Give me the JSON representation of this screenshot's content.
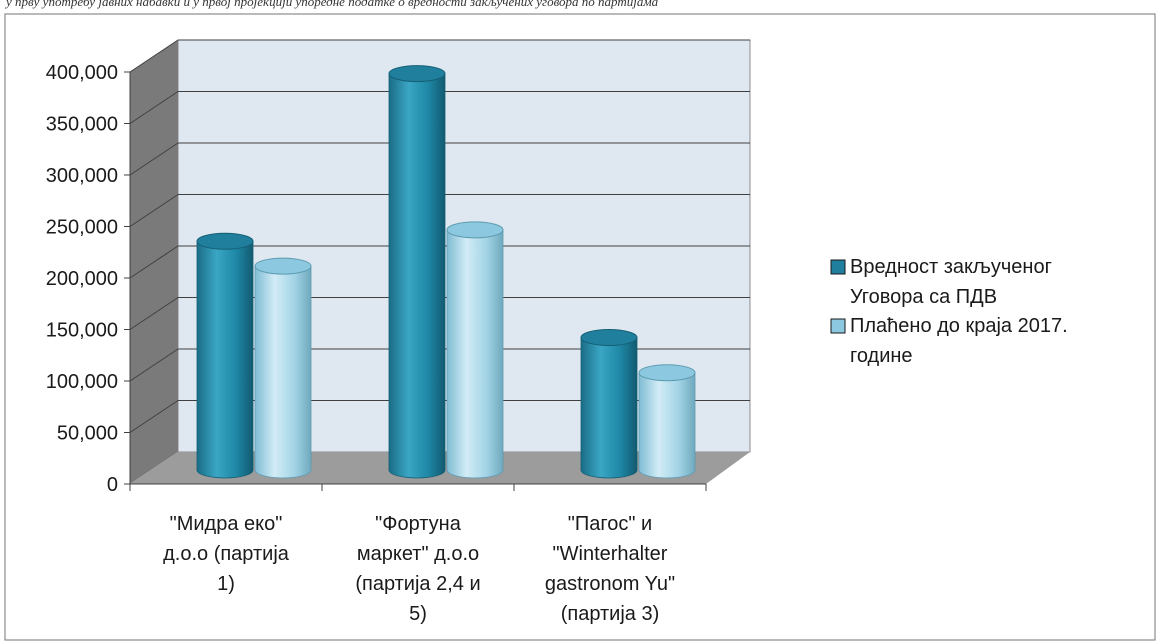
{
  "top_caption": "у прву употребу јавних набавки и у првој пројекцији упоредне податке о вредности закључених уговора по партијама",
  "colors": {
    "series_dark": "#1f7f9c",
    "series_light": "#8cc9e0",
    "wall": "#dfe8f0",
    "side_wall": "#7f7f7f",
    "floor": "#9a9a9a",
    "grid": "#404040"
  },
  "chart_data": {
    "type": "bar",
    "style": "3d-cylinder",
    "categories": [
      [
        "\"Мидра еко\"",
        "д.о.о  (партија",
        "1)"
      ],
      [
        "\"Фортуна",
        "маркет\" д.о.о",
        "(партија 2,4 и",
        "5)"
      ],
      [
        "\"Пагос\" и",
        "\"Winterhalter",
        "gastronom Yu\"",
        "(партија 3)"
      ]
    ],
    "series": [
      {
        "name": "Вредност закљученог Уговора са ПДВ",
        "legend_lines": [
          "Вредност закљученог",
          "Уговора са ПДВ"
        ],
        "values": [
          221000,
          383000,
          128000
        ]
      },
      {
        "name": "Плаћено до краја 2017. године",
        "legend_lines": [
          "Плаћено до краја 2017.",
          "године"
        ],
        "values": [
          197000,
          232000,
          94000
        ]
      }
    ],
    "ylim": [
      0,
      400000
    ],
    "yticks": [
      "0",
      "50,000",
      "100,000",
      "150,000",
      "200,000",
      "250,000",
      "300,000",
      "350,000",
      "400,000"
    ],
    "grid": true,
    "legend": "right"
  }
}
